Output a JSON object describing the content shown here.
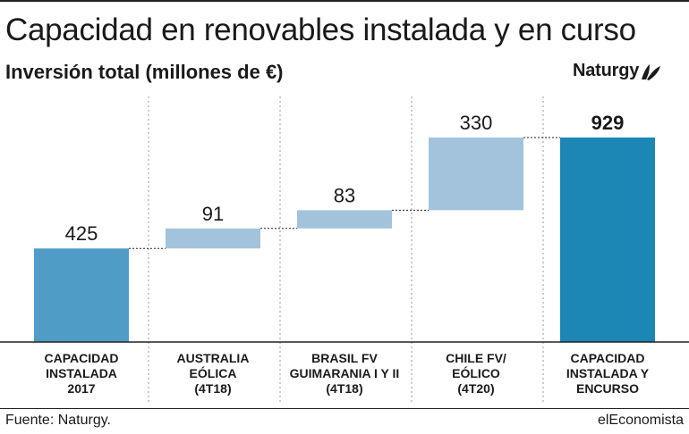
{
  "header": {
    "title": "Capacidad en renovables instalada y en curso",
    "subtitle": "Inversión total (millones de €)",
    "logo_text": "Naturgy"
  },
  "footer": {
    "source": "Fuente: Naturgy.",
    "brand": "elEconomista"
  },
  "colors": {
    "total_bar": "#4f9cc7",
    "increment_bar": "#a3c3dc",
    "final_bar": "#1c86b5"
  },
  "chart_data": {
    "type": "waterfall",
    "title": "",
    "xlabel": "",
    "ylabel": "",
    "ylim": [
      0,
      929
    ],
    "grid": false,
    "legend": "none",
    "categories": [
      [
        "CAPACIDAD",
        "INSTALADA",
        "2017"
      ],
      [
        "AUSTRALIA",
        "EÓLICA",
        "(4T18)"
      ],
      [
        "BRASIL FV",
        "GUIMARANIA I Y II",
        "(4T18)"
      ],
      [
        "CHILE FV/",
        "EÓLICO",
        "(4T20)"
      ],
      [
        "CAPACIDAD",
        "INSTALADA Y",
        "ENCURSO"
      ]
    ],
    "values": [
      425,
      91,
      83,
      330,
      929
    ],
    "labels": [
      "425",
      "91",
      "83",
      "330",
      "929"
    ],
    "kind": [
      "total",
      "increment",
      "increment",
      "increment",
      "total"
    ]
  }
}
